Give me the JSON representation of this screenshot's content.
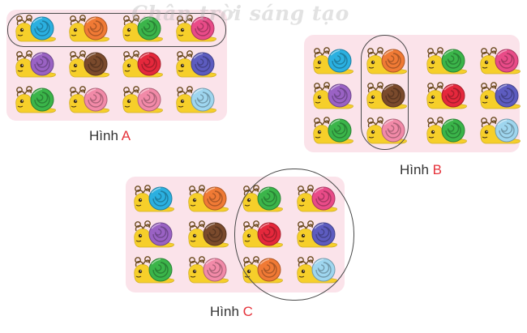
{
  "watermark": "Chân trời sáng tạo",
  "figures": [
    {
      "id": "a",
      "caption_word": "Hình",
      "caption_letter": "A",
      "shell_colors": [
        "#2bb0e0",
        "#f07a35",
        "#3bb54a",
        "#e94b88",
        "#9a62c4",
        "#7a4a2c",
        "#e5283c",
        "#5d5cc0",
        "#3bb54a",
        "#f28aa8",
        "#f28aa8",
        "#9fd6ef"
      ]
    },
    {
      "id": "b",
      "caption_word": "Hình",
      "caption_letter": "B",
      "shell_colors": [
        "#2bb0e0",
        "#f07a35",
        "#3bb54a",
        "#e94b88",
        "#9a62c4",
        "#7a4a2c",
        "#e5283c",
        "#5d5cc0",
        "#3bb54a",
        "#f28aa8",
        "#3bb54a",
        "#9fd6ef"
      ]
    },
    {
      "id": "c",
      "caption_word": "Hình",
      "caption_letter": "C",
      "shell_colors": [
        "#2bb0e0",
        "#f07a35",
        "#3bb54a",
        "#e94b88",
        "#9a62c4",
        "#7a4a2c",
        "#e5283c",
        "#5d5cc0",
        "#3bb54a",
        "#f28aa8",
        "#f07a35",
        "#9fd6ef"
      ]
    }
  ],
  "colors": {
    "snail_body": "#f6cf2a",
    "panel_bg": "#fbe3ea",
    "caption_letter": "#e5323a"
  }
}
